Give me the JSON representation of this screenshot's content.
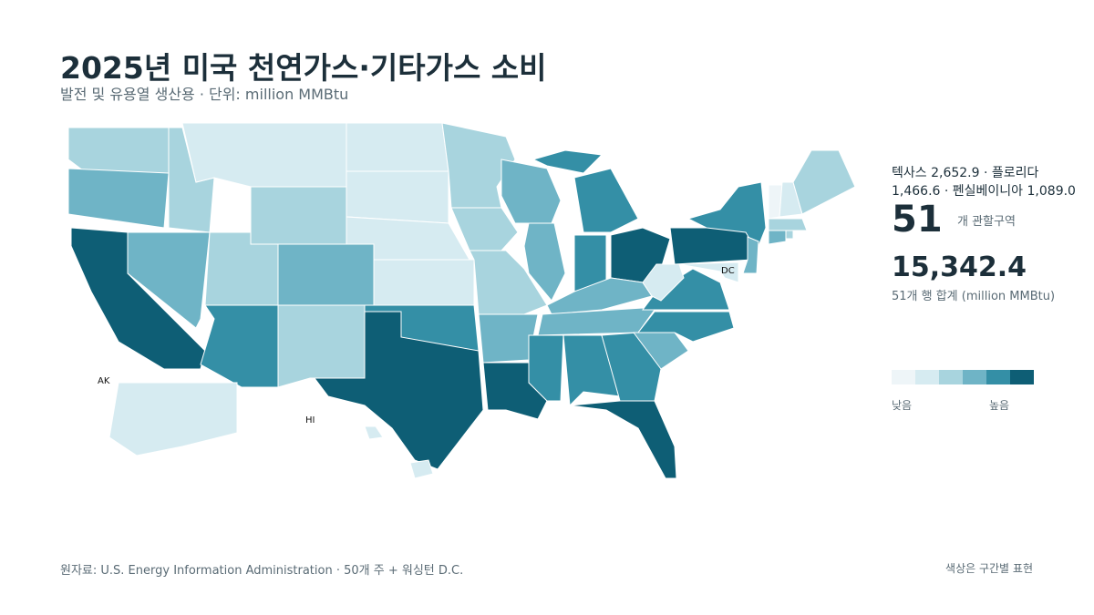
{
  "header": {
    "title": "2025년 미국 천연가스·기타가스 소비",
    "subtitle": "발전 및 유용열 생산용 · 단위: million MMBtu"
  },
  "map": {
    "labels": {
      "dc": "DC",
      "ak": "AK",
      "hi": "HI"
    }
  },
  "summary": {
    "top": "텍사스 2,652.9 · 플로리다 1,466.6 · 펜실베이니아 1,089.0",
    "count": "51",
    "count_label": "개 관할구역",
    "total": "15,342.4",
    "total_label": "51개 행 합계 (million MMBtu)"
  },
  "legend": {
    "colors": [
      "#eef5f8",
      "#d6ebf1",
      "#a8d4de",
      "#6fb4c6",
      "#348fa6",
      "#0e5e75"
    ],
    "low": "낮음",
    "high": "높음"
  },
  "footer": {
    "source": "원자료: U.S. Energy Information Administration · 50개 주 + 워싱턴 D.C.",
    "note": "색상은 구간별 표현"
  }
}
